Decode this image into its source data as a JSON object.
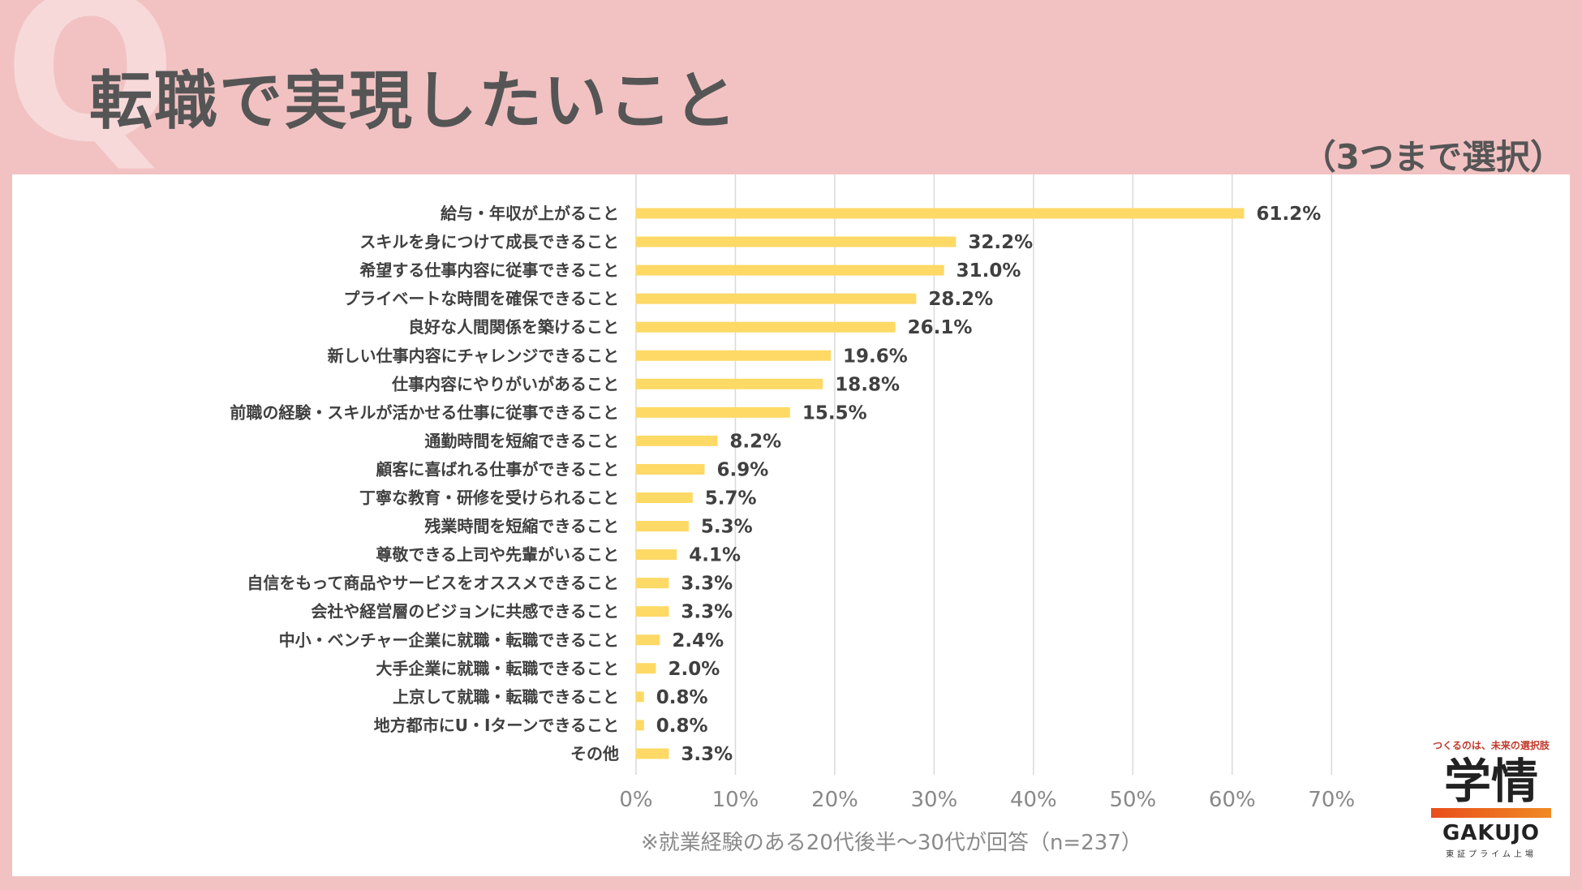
{
  "header": {
    "title": "転職で実現したいこと",
    "subtitle": "（3つまで選択）"
  },
  "footnote": "※就業経験のある20代後半～30代が回答（n=237）",
  "logo": {
    "tagline": "つくるのは、未来の選択肢",
    "mark": "学情",
    "name": "GAKUJO",
    "market": "東証プライム上場"
  },
  "colors": {
    "bar": "#ffd966",
    "grid": "#d9d9d9",
    "label": "#404040",
    "tick": "#888888"
  },
  "chart_data": {
    "type": "bar",
    "orientation": "horizontal",
    "categories": [
      "給与・年収が上がること",
      "スキルを身につけて成長できること",
      "希望する仕事内容に従事できること",
      "プライベートな時間を確保できること",
      "良好な人間関係を築けること",
      "新しい仕事内容にチャレンジできること",
      "仕事内容にやりがいがあること",
      "前職の経験・スキルが活かせる仕事に従事できること",
      "通勤時間を短縮できること",
      "顧客に喜ばれる仕事ができること",
      "丁寧な教育・研修を受けられること",
      "残業時間を短縮できること",
      "尊敬できる上司や先輩がいること",
      "自信をもって商品やサービスをオススメできること",
      "会社や経営層のビジョンに共感できること",
      "中小・ベンチャー企業に就職・転職できること",
      "大手企業に就職・転職できること",
      "上京して就職・転職できること",
      "地方都市にU・Iターンできること",
      "その他"
    ],
    "values": [
      61.2,
      32.2,
      31.0,
      28.2,
      26.1,
      19.6,
      18.8,
      15.5,
      8.2,
      6.9,
      5.7,
      5.3,
      4.1,
      3.3,
      3.3,
      2.4,
      2.0,
      0.8,
      0.8,
      3.3
    ],
    "value_labels": [
      "61.2%",
      "32.2%",
      "31.0%",
      "28.2%",
      "26.1%",
      "19.6%",
      "18.8%",
      "15.5%",
      "8.2%",
      "6.9%",
      "5.7%",
      "5.3%",
      "4.1%",
      "3.3%",
      "3.3%",
      "2.4%",
      "2.0%",
      "0.8%",
      "0.8%",
      "3.3%"
    ],
    "xlim": [
      0,
      70
    ],
    "xticks": [
      0,
      10,
      20,
      30,
      40,
      50,
      60,
      70
    ],
    "xtick_labels": [
      "0%",
      "10%",
      "20%",
      "30%",
      "40%",
      "50%",
      "60%",
      "70%"
    ],
    "grid": true
  }
}
